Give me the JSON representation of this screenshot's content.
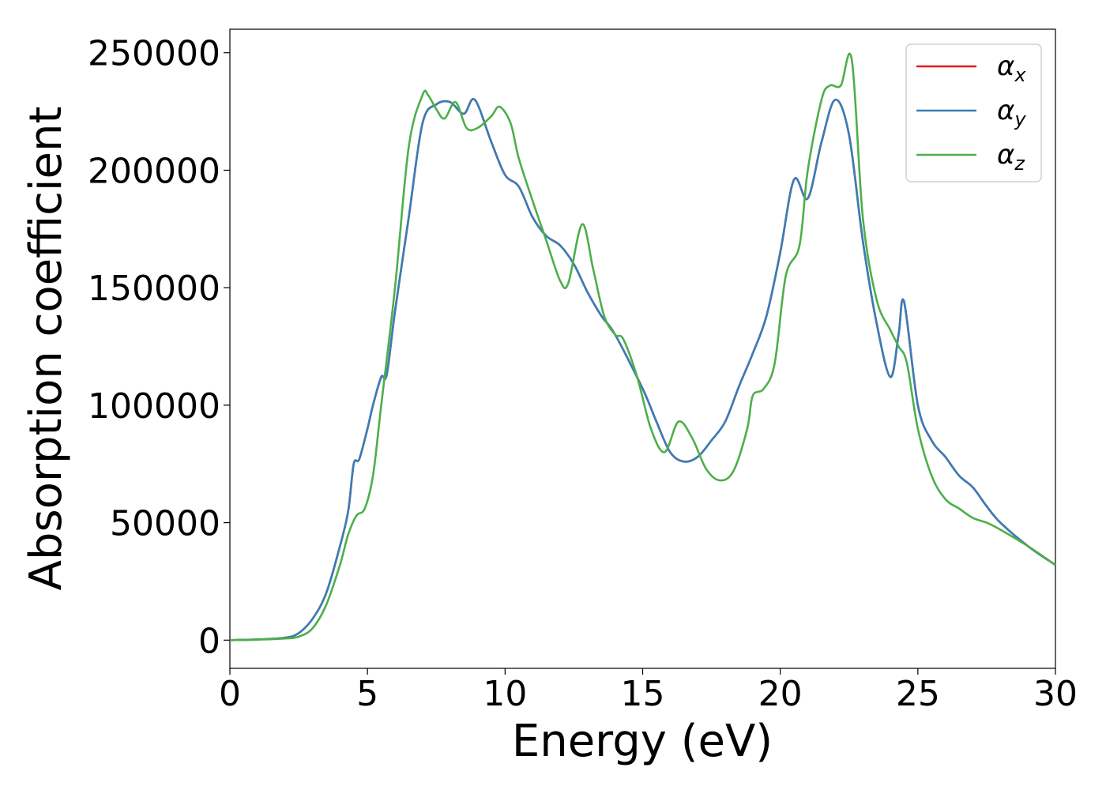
{
  "chart_data": {
    "type": "line",
    "title": "",
    "xlabel": "Energy (eV)",
    "ylabel": "Absorption coefficient",
    "xlim": [
      0,
      30
    ],
    "ylim": [
      -12000,
      260000
    ],
    "xticks": [
      0,
      5,
      10,
      15,
      20,
      25,
      30
    ],
    "yticks": [
      0,
      50000,
      100000,
      150000,
      200000,
      250000
    ],
    "grid": false,
    "legend_position": "top-right",
    "legend": [
      {
        "symbol": "α",
        "subscript": "x",
        "color": "#e41a1c"
      },
      {
        "symbol": "α",
        "subscript": "y",
        "color": "#377eb8"
      },
      {
        "symbol": "α",
        "subscript": "z",
        "color": "#4daf4a"
      }
    ],
    "series": [
      {
        "color": "#e41a1c",
        "x": [
          0,
          1,
          2,
          2.5,
          3,
          3.5,
          4,
          4.3,
          4.5,
          4.7,
          5,
          5.2,
          5.5,
          5.7,
          6,
          6.5,
          7,
          7.5,
          8,
          8.5,
          8.9,
          9.5,
          10,
          10.5,
          11,
          11.5,
          12,
          12.5,
          13,
          13.5,
          14,
          15,
          15.5,
          16,
          16.5,
          17,
          17.5,
          18,
          18.5,
          19,
          19.5,
          20,
          20.5,
          21,
          21.5,
          22,
          22.5,
          23,
          23.5,
          24,
          24.3,
          24.5,
          25,
          25.5,
          26,
          26.5,
          27,
          27.5,
          28,
          29,
          30
        ],
        "y": [
          0,
          300,
          1000,
          3000,
          9000,
          20000,
          40000,
          55000,
          75000,
          77000,
          90000,
          100000,
          112000,
          113000,
          140000,
          180000,
          220000,
          228000,
          229000,
          224000,
          230000,
          212000,
          198000,
          193000,
          180000,
          172000,
          168000,
          160000,
          148000,
          138000,
          130000,
          107000,
          93000,
          80000,
          76000,
          78000,
          85000,
          93000,
          108000,
          122000,
          138000,
          165000,
          196000,
          188000,
          212000,
          230000,
          215000,
          170000,
          135000,
          112000,
          130000,
          144000,
          100000,
          85000,
          78000,
          70000,
          65000,
          57000,
          50000,
          40000,
          32000
        ]
      },
      {
        "color": "#377eb8",
        "x": [
          0,
          1,
          2,
          2.5,
          3,
          3.5,
          4,
          4.3,
          4.5,
          4.7,
          5,
          5.2,
          5.5,
          5.7,
          6,
          6.5,
          7,
          7.5,
          8,
          8.5,
          8.9,
          9.5,
          10,
          10.5,
          11,
          11.5,
          12,
          12.5,
          13,
          13.5,
          14,
          15,
          15.5,
          16,
          16.5,
          17,
          17.5,
          18,
          18.5,
          19,
          19.5,
          20,
          20.5,
          21,
          21.5,
          22,
          22.5,
          23,
          23.5,
          24,
          24.3,
          24.5,
          25,
          25.5,
          26,
          26.5,
          27,
          27.5,
          28,
          29,
          30
        ],
        "y": [
          0,
          300,
          1000,
          3000,
          9000,
          20000,
          40000,
          55000,
          75000,
          77000,
          90000,
          100000,
          112000,
          113000,
          140000,
          180000,
          220000,
          228000,
          229000,
          224000,
          230000,
          212000,
          198000,
          193000,
          180000,
          172000,
          168000,
          160000,
          148000,
          138000,
          130000,
          107000,
          93000,
          80000,
          76000,
          78000,
          85000,
          93000,
          108000,
          122000,
          138000,
          165000,
          196000,
          188000,
          212000,
          230000,
          215000,
          170000,
          135000,
          112000,
          130000,
          144000,
          100000,
          85000,
          78000,
          70000,
          65000,
          57000,
          50000,
          40000,
          32000
        ]
      },
      {
        "color": "#4daf4a",
        "x": [
          0,
          1,
          2,
          2.5,
          3,
          3.5,
          4,
          4.3,
          4.6,
          4.9,
          5.2,
          5.5,
          6,
          6.5,
          7,
          7.2,
          7.5,
          7.8,
          8.2,
          8.6,
          9,
          9.5,
          9.8,
          10.2,
          10.5,
          11,
          11.5,
          12,
          12.3,
          12.8,
          13.2,
          13.6,
          14,
          14.3,
          14.8,
          15.3,
          15.8,
          16.3,
          16.8,
          17.3,
          17.8,
          18.3,
          18.8,
          19,
          19.4,
          19.8,
          20.2,
          20.7,
          21,
          21.5,
          21.8,
          22.2,
          22.6,
          23,
          23.5,
          24,
          24.3,
          24.6,
          25,
          25.5,
          26,
          26.5,
          27,
          27.5,
          28,
          29,
          30
        ],
        "y": [
          0,
          200,
          700,
          1500,
          5000,
          15000,
          32000,
          45000,
          53000,
          56000,
          70000,
          100000,
          150000,
          210000,
          232000,
          232000,
          226000,
          222000,
          229000,
          218000,
          218000,
          223000,
          227000,
          220000,
          205000,
          187000,
          170000,
          153000,
          152000,
          177000,
          158000,
          138000,
          130000,
          128000,
          112000,
          90000,
          80000,
          93000,
          86000,
          73000,
          68000,
          72000,
          90000,
          104000,
          107000,
          118000,
          155000,
          168000,
          200000,
          230000,
          236000,
          236000,
          247000,
          180000,
          145000,
          132000,
          125000,
          118000,
          90000,
          70000,
          60000,
          56000,
          52000,
          50000,
          47000,
          40000,
          32000
        ]
      }
    ]
  }
}
